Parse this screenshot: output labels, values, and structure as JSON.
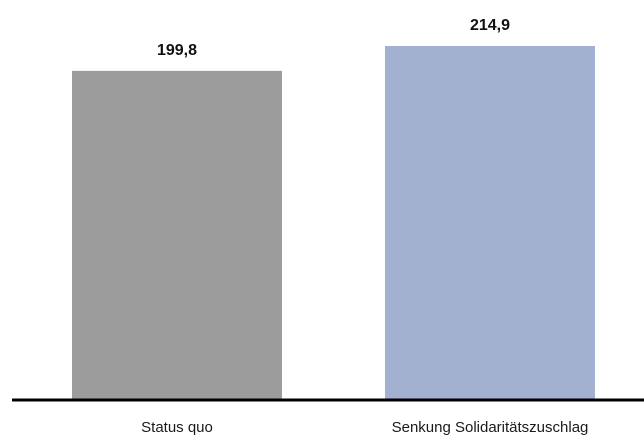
{
  "chart_data": {
    "type": "bar",
    "categories": [
      "Status quo",
      "Senkung Solidaritätszuschlag"
    ],
    "values": [
      199.8,
      214.9
    ],
    "value_labels": [
      "199,8",
      "214,9"
    ],
    "colors": [
      "#9c9c9c",
      "#a3b1d1"
    ],
    "axis_color": "#000000",
    "title": "",
    "xlabel": "",
    "ylabel": "",
    "grid": false,
    "legend": "none"
  }
}
